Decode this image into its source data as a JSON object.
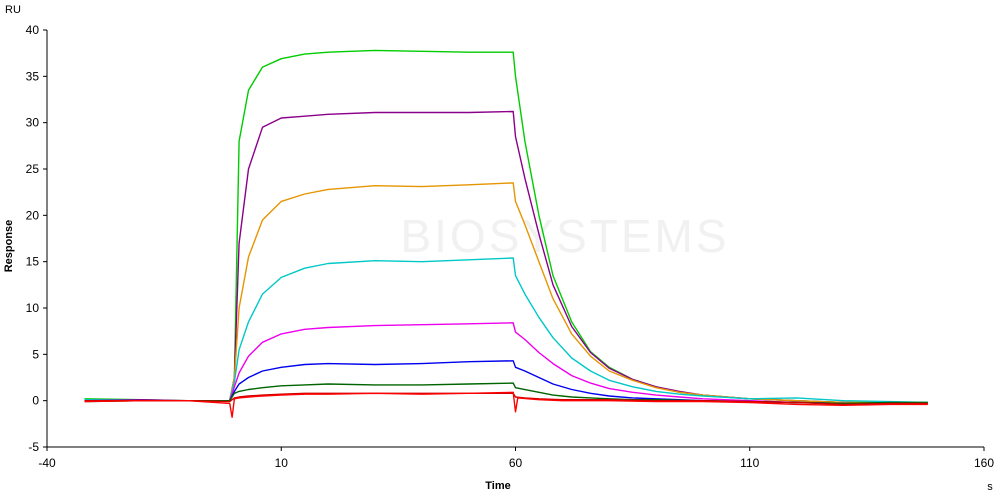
{
  "chart_data": {
    "type": "line",
    "title": "",
    "xlabel": "Time",
    "ylabel": "Response",
    "x_unit": "s",
    "y_unit": "RU",
    "xlim": [
      -40,
      160
    ],
    "ylim": [
      -5,
      40
    ],
    "x_ticks": [
      -40,
      10,
      60,
      110,
      160
    ],
    "y_ticks": [
      -5,
      0,
      5,
      10,
      15,
      20,
      25,
      30,
      35,
      40
    ],
    "grid": false,
    "legend": "none",
    "watermark": "BIOSYSTEMS",
    "series": [
      {
        "color": "#00cc00",
        "points": [
          [
            -32,
            0.2
          ],
          [
            -20,
            0.1
          ],
          [
            -10,
            0.0
          ],
          [
            -1,
            0.0
          ],
          [
            0,
            2.5
          ],
          [
            1,
            28
          ],
          [
            3,
            33.5
          ],
          [
            6,
            36
          ],
          [
            10,
            36.9
          ],
          [
            15,
            37.4
          ],
          [
            20,
            37.6
          ],
          [
            30,
            37.8
          ],
          [
            40,
            37.7
          ],
          [
            50,
            37.6
          ],
          [
            59.5,
            37.6
          ],
          [
            60,
            35
          ],
          [
            62,
            28
          ],
          [
            65,
            20
          ],
          [
            68,
            13.5
          ],
          [
            72,
            8.5
          ],
          [
            76,
            5.3
          ],
          [
            80,
            3.6
          ],
          [
            85,
            2.3
          ],
          [
            90,
            1.5
          ],
          [
            95,
            0.9
          ],
          [
            100,
            0.6
          ],
          [
            110,
            0.2
          ],
          [
            120,
            0
          ],
          [
            130,
            -0.2
          ],
          [
            140,
            -0.2
          ],
          [
            148,
            -0.2
          ]
        ]
      },
      {
        "color": "#8b008b",
        "points": [
          [
            -32,
            0.1
          ],
          [
            -20,
            0.1
          ],
          [
            -10,
            0.0
          ],
          [
            -1,
            0.0
          ],
          [
            0,
            2.5
          ],
          [
            1,
            17
          ],
          [
            3,
            25
          ],
          [
            6,
            29.5
          ],
          [
            10,
            30.5
          ],
          [
            15,
            30.7
          ],
          [
            20,
            30.9
          ],
          [
            30,
            31.1
          ],
          [
            40,
            31.1
          ],
          [
            50,
            31.1
          ],
          [
            59.5,
            31.2
          ],
          [
            60,
            28.5
          ],
          [
            62,
            24
          ],
          [
            65,
            18
          ],
          [
            68,
            12.5
          ],
          [
            72,
            8
          ],
          [
            76,
            5.2
          ],
          [
            80,
            3.5
          ],
          [
            85,
            2.3
          ],
          [
            90,
            1.5
          ],
          [
            95,
            1.0
          ],
          [
            100,
            0.6
          ],
          [
            110,
            0.2
          ],
          [
            120,
            0
          ],
          [
            130,
            -0.2
          ],
          [
            140,
            -0.3
          ],
          [
            148,
            -0.3
          ]
        ]
      },
      {
        "color": "#e69500",
        "points": [
          [
            -32,
            0.0
          ],
          [
            -20,
            0.0
          ],
          [
            -10,
            0.0
          ],
          [
            -1,
            0.0
          ],
          [
            0,
            2.5
          ],
          [
            1,
            10
          ],
          [
            3,
            15.5
          ],
          [
            6,
            19.5
          ],
          [
            10,
            21.5
          ],
          [
            15,
            22.3
          ],
          [
            20,
            22.8
          ],
          [
            30,
            23.2
          ],
          [
            40,
            23.1
          ],
          [
            50,
            23.3
          ],
          [
            59.5,
            23.5
          ],
          [
            60,
            21.5
          ],
          [
            62,
            19
          ],
          [
            65,
            15
          ],
          [
            68,
            11
          ],
          [
            72,
            7.2
          ],
          [
            76,
            4.8
          ],
          [
            80,
            3.2
          ],
          [
            85,
            2.2
          ],
          [
            90,
            1.4
          ],
          [
            95,
            0.9
          ],
          [
            100,
            0.6
          ],
          [
            110,
            0.2
          ],
          [
            120,
            0
          ],
          [
            130,
            -0.2
          ],
          [
            140,
            -0.2
          ],
          [
            148,
            -0.3
          ]
        ]
      },
      {
        "color": "#00c8c8",
        "points": [
          [
            -32,
            0.1
          ],
          [
            -20,
            0.0
          ],
          [
            -10,
            0.0
          ],
          [
            -1,
            0.0
          ],
          [
            0,
            2.0
          ],
          [
            1,
            5.5
          ],
          [
            3,
            8.5
          ],
          [
            6,
            11.5
          ],
          [
            10,
            13.3
          ],
          [
            15,
            14.3
          ],
          [
            20,
            14.8
          ],
          [
            30,
            15.1
          ],
          [
            40,
            15.0
          ],
          [
            50,
            15.2
          ],
          [
            59.5,
            15.4
          ],
          [
            60,
            13.5
          ],
          [
            62,
            11.5
          ],
          [
            65,
            9
          ],
          [
            68,
            6.8
          ],
          [
            72,
            4.6
          ],
          [
            76,
            3.2
          ],
          [
            80,
            2.2
          ],
          [
            85,
            1.5
          ],
          [
            90,
            1.0
          ],
          [
            95,
            0.7
          ],
          [
            100,
            0.5
          ],
          [
            110,
            0.2
          ],
          [
            120,
            0.3
          ],
          [
            130,
            0
          ],
          [
            140,
            -0.1
          ],
          [
            148,
            -0.2
          ]
        ]
      },
      {
        "color": "#ee00ee",
        "points": [
          [
            -32,
            0.0
          ],
          [
            -20,
            0.0
          ],
          [
            -10,
            0.0
          ],
          [
            -1,
            0.0
          ],
          [
            0,
            1.5
          ],
          [
            1,
            3
          ],
          [
            3,
            4.8
          ],
          [
            6,
            6.3
          ],
          [
            10,
            7.2
          ],
          [
            15,
            7.7
          ],
          [
            20,
            7.9
          ],
          [
            30,
            8.1
          ],
          [
            40,
            8.2
          ],
          [
            50,
            8.3
          ],
          [
            59.5,
            8.4
          ],
          [
            60,
            7.4
          ],
          [
            62,
            6.6
          ],
          [
            65,
            5.2
          ],
          [
            68,
            4.0
          ],
          [
            72,
            2.7
          ],
          [
            76,
            1.9
          ],
          [
            80,
            1.3
          ],
          [
            85,
            0.9
          ],
          [
            90,
            0.6
          ],
          [
            95,
            0.4
          ],
          [
            100,
            0.2
          ],
          [
            110,
            0
          ],
          [
            120,
            -0.2
          ],
          [
            130,
            -0.3
          ],
          [
            140,
            -0.3
          ],
          [
            148,
            -0.3
          ]
        ]
      },
      {
        "color": "#0000ee",
        "points": [
          [
            -32,
            0.0
          ],
          [
            -20,
            0.0
          ],
          [
            -10,
            0.0
          ],
          [
            -1,
            0.0
          ],
          [
            0,
            1.0
          ],
          [
            1,
            1.8
          ],
          [
            3,
            2.5
          ],
          [
            6,
            3.2
          ],
          [
            10,
            3.6
          ],
          [
            15,
            3.9
          ],
          [
            20,
            4.0
          ],
          [
            30,
            3.9
          ],
          [
            40,
            4.0
          ],
          [
            50,
            4.2
          ],
          [
            59.5,
            4.3
          ],
          [
            60,
            3.6
          ],
          [
            62,
            3.2
          ],
          [
            65,
            2.5
          ],
          [
            68,
            1.8
          ],
          [
            72,
            1.2
          ],
          [
            76,
            0.8
          ],
          [
            80,
            0.5
          ],
          [
            85,
            0.3
          ],
          [
            90,
            0.2
          ],
          [
            95,
            0.1
          ],
          [
            100,
            0
          ],
          [
            110,
            -0.1
          ],
          [
            120,
            -0.2
          ],
          [
            130,
            -0.3
          ],
          [
            140,
            -0.3
          ],
          [
            148,
            -0.3
          ]
        ]
      },
      {
        "color": "#006400",
        "points": [
          [
            -32,
            -0.1
          ],
          [
            -20,
            0.0
          ],
          [
            -10,
            0.0
          ],
          [
            -1,
            0.0
          ],
          [
            0,
            0.8
          ],
          [
            1,
            1.0
          ],
          [
            3,
            1.2
          ],
          [
            6,
            1.4
          ],
          [
            10,
            1.6
          ],
          [
            15,
            1.7
          ],
          [
            20,
            1.8
          ],
          [
            30,
            1.7
          ],
          [
            40,
            1.7
          ],
          [
            50,
            1.8
          ],
          [
            59.5,
            1.9
          ],
          [
            60,
            1.4
          ],
          [
            62,
            1.2
          ],
          [
            65,
            0.9
          ],
          [
            68,
            0.6
          ],
          [
            72,
            0.4
          ],
          [
            76,
            0.3
          ],
          [
            80,
            0.2
          ],
          [
            85,
            0.1
          ],
          [
            90,
            0.1
          ],
          [
            100,
            0
          ],
          [
            110,
            -0.1
          ],
          [
            120,
            -0.2
          ],
          [
            130,
            -0.3
          ],
          [
            140,
            -0.2
          ],
          [
            148,
            -0.2
          ]
        ]
      },
      {
        "color": "#cc0000",
        "points": [
          [
            -32,
            0.0
          ],
          [
            -20,
            0.0
          ],
          [
            -10,
            0.0
          ],
          [
            -1,
            -0.1
          ],
          [
            0,
            0.3
          ],
          [
            1,
            0.4
          ],
          [
            3,
            0.5
          ],
          [
            6,
            0.6
          ],
          [
            10,
            0.7
          ],
          [
            15,
            0.8
          ],
          [
            20,
            0.8
          ],
          [
            30,
            0.8
          ],
          [
            40,
            0.8
          ],
          [
            50,
            0.8
          ],
          [
            59.5,
            0.8
          ],
          [
            60,
            0.4
          ],
          [
            62,
            0.3
          ],
          [
            65,
            0.2
          ],
          [
            70,
            0.1
          ],
          [
            80,
            0.1
          ],
          [
            90,
            0
          ],
          [
            100,
            0
          ],
          [
            110,
            -0.1
          ],
          [
            120,
            -0.2
          ],
          [
            130,
            -0.4
          ],
          [
            140,
            -0.3
          ],
          [
            148,
            -0.3
          ]
        ]
      },
      {
        "color": "#ff0000",
        "points": [
          [
            -32,
            -0.1
          ],
          [
            -20,
            0.0
          ],
          [
            -10,
            0.0
          ],
          [
            -1,
            -0.3
          ],
          [
            -0.5,
            -1.8
          ],
          [
            0,
            0.2
          ],
          [
            1,
            0.3
          ],
          [
            3,
            0.4
          ],
          [
            6,
            0.5
          ],
          [
            10,
            0.6
          ],
          [
            15,
            0.7
          ],
          [
            20,
            0.7
          ],
          [
            30,
            0.8
          ],
          [
            40,
            0.7
          ],
          [
            50,
            0.8
          ],
          [
            59.5,
            0.9
          ],
          [
            60,
            -1.2
          ],
          [
            60.5,
            0.3
          ],
          [
            65,
            0.1
          ],
          [
            70,
            0.0
          ],
          [
            80,
            0.0
          ],
          [
            90,
            -0.1
          ],
          [
            100,
            -0.1
          ],
          [
            110,
            -0.2
          ],
          [
            120,
            -0.4
          ],
          [
            130,
            -0.5
          ],
          [
            140,
            -0.4
          ],
          [
            148,
            -0.4
          ]
        ]
      }
    ]
  }
}
